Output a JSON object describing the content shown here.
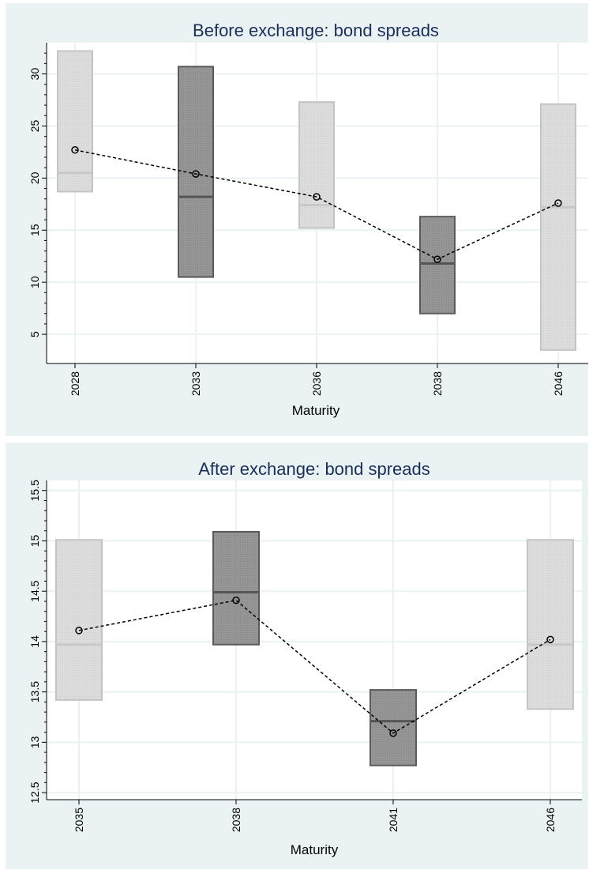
{
  "colors": {
    "panel_bg": "#eaf2f3",
    "plot_bg": "#ffffff",
    "grid": "#eaf2f3",
    "title": "#1a2e5a",
    "box_light": "#dcdcdc",
    "box_light_edge": "#c4c4c4",
    "box_dark": "#959595",
    "box_dark_edge": "#5a5a5a",
    "median_light": "#c8c8c8",
    "median_dark": "#555555",
    "mean_line": "#000000"
  },
  "chart_data": [
    {
      "type": "box",
      "title": "Before exchange: bond spreads",
      "xlabel": "Maturity",
      "ylabel": "",
      "ylim": [
        2.2,
        33
      ],
      "yticks": [
        5,
        10,
        15,
        20,
        25,
        30
      ],
      "ytick_labels": [
        "5",
        "10",
        "15",
        "20",
        "25",
        "30"
      ],
      "minor_yticks": [
        6,
        7,
        8,
        9,
        11,
        12,
        13,
        14,
        16,
        17,
        18,
        19,
        21,
        22,
        23,
        24,
        26,
        27,
        28,
        29,
        31,
        32
      ],
      "grid": true,
      "categories": [
        "2028",
        "2033",
        "2036",
        "2038",
        "2046"
      ],
      "boxes": [
        {
          "category": "2028",
          "q1": 18.7,
          "median": 20.5,
          "q3": 32.2,
          "mean": 22.7,
          "shade": "light"
        },
        {
          "category": "2033",
          "q1": 10.5,
          "median": 18.2,
          "q3": 30.7,
          "mean": 20.4,
          "shade": "dark"
        },
        {
          "category": "2036",
          "q1": 15.2,
          "median": 17.4,
          "q3": 27.3,
          "mean": 18.2,
          "shade": "light"
        },
        {
          "category": "2038",
          "q1": 7.0,
          "median": 11.8,
          "q3": 16.3,
          "mean": 12.2,
          "shade": "dark"
        },
        {
          "category": "2046",
          "q1": 3.5,
          "median": 17.2,
          "q3": 27.1,
          "mean": 17.6,
          "shade": "light"
        }
      ]
    },
    {
      "type": "box",
      "title": "After exchange: bond spreads",
      "xlabel": "Maturity",
      "ylabel": "",
      "ylim": [
        12.43,
        15.6
      ],
      "yticks": [
        12.5,
        13,
        13.5,
        14,
        14.5,
        15,
        15.5
      ],
      "ytick_labels": [
        "12.5",
        "13",
        "13.5",
        "14",
        "14.5",
        "15",
        "15.5"
      ],
      "minor_yticks": [
        12.6,
        12.7,
        12.8,
        12.9,
        13.1,
        13.2,
        13.3,
        13.4,
        13.6,
        13.7,
        13.8,
        13.9,
        14.1,
        14.2,
        14.3,
        14.4,
        14.6,
        14.7,
        14.8,
        14.9,
        15.1,
        15.2,
        15.3,
        15.4
      ],
      "grid": true,
      "categories": [
        "2035",
        "2038",
        "2041",
        "2046"
      ],
      "boxes": [
        {
          "category": "2035",
          "q1": 13.42,
          "median": 13.97,
          "q3": 15.01,
          "mean": 14.11,
          "shade": "light"
        },
        {
          "category": "2038",
          "q1": 13.97,
          "median": 14.49,
          "q3": 15.09,
          "mean": 14.41,
          "shade": "dark"
        },
        {
          "category": "2041",
          "q1": 12.77,
          "median": 13.21,
          "q3": 13.52,
          "mean": 13.09,
          "shade": "dark"
        },
        {
          "category": "2046",
          "q1": 13.33,
          "median": 13.97,
          "q3": 15.01,
          "mean": 14.02,
          "shade": "light"
        }
      ]
    }
  ]
}
